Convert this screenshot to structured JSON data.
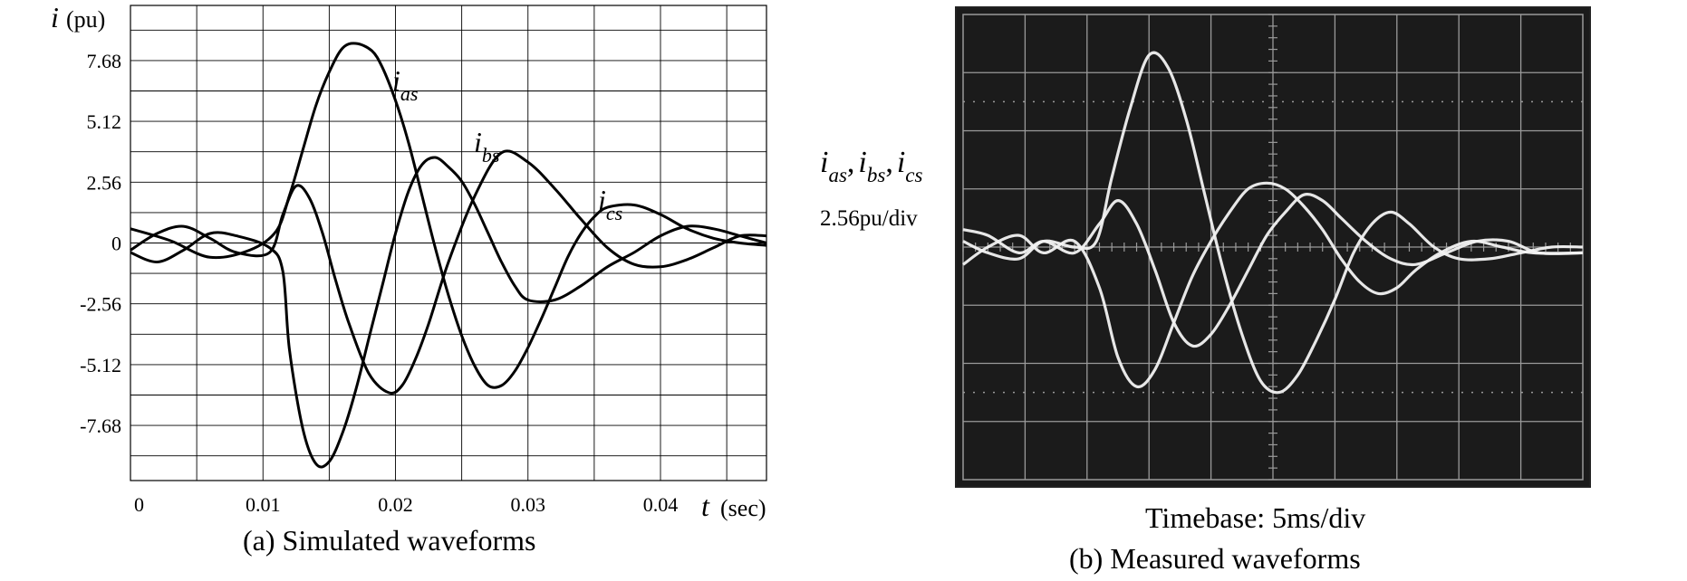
{
  "chart_data": [
    {
      "type": "line",
      "caption": "(a)  Simulated waveforms",
      "ylabel_symbol": "i",
      "ylabel_unit": "(pu)",
      "xlabel_symbol": "t",
      "xlabel_unit": "(sec)",
      "x_ticks": [
        "0",
        "0.01",
        "0.02",
        "0.03",
        "0.04"
      ],
      "y_ticks": [
        "7.68",
        "5.12",
        "2.56",
        "0",
        "-2.56",
        "-5.12",
        "-7.68"
      ],
      "xlim": [
        0,
        0.048
      ],
      "ylim": [
        -10.0,
        10.0
      ],
      "grid": true,
      "series": [
        {
          "name": "as",
          "x": [
            0,
            0.003,
            0.006,
            0.009,
            0.011,
            0.012,
            0.013,
            0.014,
            0.015,
            0.016,
            0.017,
            0.0182,
            0.019,
            0.02,
            0.021,
            0.022,
            0.023,
            0.024,
            0.025,
            0.026,
            0.027,
            0.028,
            0.029,
            0.03,
            0.031,
            0.032,
            0.033,
            0.034,
            0.035,
            0.036,
            0.038,
            0.04,
            0.042,
            0.044,
            0.046,
            0.048
          ],
          "y": [
            0.6,
            0.1,
            -0.6,
            -0.3,
            0.5,
            2.0,
            3.9,
            5.8,
            7.2,
            8.2,
            8.4,
            8.1,
            7.4,
            6.0,
            4.2,
            2.0,
            -0.2,
            -2.2,
            -3.9,
            -5.2,
            -6.0,
            -6.0,
            -5.4,
            -4.4,
            -3.2,
            -1.9,
            -0.6,
            0.4,
            1.1,
            1.5,
            1.6,
            1.2,
            0.6,
            0.2,
            0.0,
            -0.1
          ]
        },
        {
          "name": "bs",
          "x": [
            0,
            0.002,
            0.004,
            0.006,
            0.008,
            0.0105,
            0.0115,
            0.012,
            0.013,
            0.014,
            0.015,
            0.016,
            0.017,
            0.018,
            0.019,
            0.02,
            0.021,
            0.022,
            0.023,
            0.024,
            0.025,
            0.026,
            0.027,
            0.028,
            0.029,
            0.03,
            0.032,
            0.034,
            0.036,
            0.038,
            0.04,
            0.042,
            0.044,
            0.046,
            0.048
          ],
          "y": [
            -0.4,
            -0.8,
            -0.3,
            0.4,
            0.3,
            -0.2,
            -1.2,
            -4.5,
            -7.8,
            -9.3,
            -9.2,
            -8.0,
            -6.2,
            -4.0,
            -1.8,
            0.4,
            2.2,
            3.3,
            3.6,
            3.2,
            2.6,
            1.6,
            0.4,
            -0.8,
            -1.8,
            -2.4,
            -2.4,
            -1.8,
            -1.0,
            -0.4,
            0.3,
            0.7,
            0.6,
            0.3,
            0.0
          ]
        },
        {
          "name": "cs",
          "x": [
            0,
            0.002,
            0.004,
            0.006,
            0.008,
            0.0105,
            0.0115,
            0.0125,
            0.0135,
            0.0145,
            0.0155,
            0.0165,
            0.018,
            0.0195,
            0.0205,
            0.0215,
            0.0225,
            0.024,
            0.026,
            0.028,
            0.03,
            0.032,
            0.034,
            0.036,
            0.038,
            0.04,
            0.042,
            0.044,
            0.046,
            0.048
          ],
          "y": [
            -0.3,
            0.4,
            0.7,
            0.2,
            -0.4,
            -0.4,
            1.2,
            2.4,
            1.9,
            0.4,
            -1.6,
            -3.4,
            -5.5,
            -6.3,
            -6.0,
            -4.9,
            -3.4,
            -0.8,
            2.0,
            3.8,
            3.4,
            2.3,
            1.0,
            -0.2,
            -0.9,
            -1.0,
            -0.7,
            -0.2,
            0.3,
            0.3
          ]
        }
      ]
    },
    {
      "type": "line",
      "caption": "(b)  Measured waveforms",
      "ylabel_symbol": "i",
      "ylabel_subscripts": [
        "as",
        "bs",
        "cs"
      ],
      "ylabel_scale": "2.56pu/div",
      "timebase": "Timebase: 5ms/div",
      "background": "#1b1b1b",
      "grid_color": "#9a9a9a",
      "trace_color": "#f2f2f2",
      "grid_divisions": [
        10,
        8
      ],
      "xlim": [
        0,
        10
      ],
      "ylim": [
        -4,
        4
      ],
      "series": [
        {
          "name": "as",
          "x": [
            0,
            0.4,
            0.9,
            1.3,
            1.8,
            2.15,
            2.4,
            2.7,
            3.0,
            3.3,
            3.6,
            3.9,
            4.2,
            4.5,
            4.8,
            5.1,
            5.4,
            5.7,
            6.0,
            6.3,
            6.6,
            6.9,
            7.2,
            7.6,
            8.0,
            8.5,
            9.0,
            9.5,
            10
          ],
          "y": [
            0.1,
            -0.1,
            -0.2,
            0.1,
            0.0,
            0.1,
            1.2,
            2.4,
            3.3,
            3.1,
            2.2,
            0.9,
            -0.4,
            -1.5,
            -2.3,
            -2.5,
            -2.2,
            -1.6,
            -0.9,
            -0.1,
            0.4,
            0.6,
            0.4,
            0.0,
            -0.2,
            -0.2,
            -0.1,
            0.0,
            0.0
          ]
        },
        {
          "name": "bs",
          "x": [
            0,
            0.4,
            0.9,
            1.3,
            1.8,
            2.2,
            2.5,
            2.8,
            3.1,
            3.4,
            3.7,
            4.0,
            4.3,
            4.6,
            4.9,
            5.2,
            5.5,
            5.8,
            6.1,
            6.4,
            6.7,
            7.0,
            7.3,
            7.7,
            8.2,
            8.7,
            9.2,
            10
          ],
          "y": [
            -0.3,
            0.0,
            0.2,
            -0.1,
            0.1,
            -0.7,
            -1.9,
            -2.4,
            -2.1,
            -1.3,
            -0.5,
            0.1,
            0.6,
            1.0,
            1.1,
            1.0,
            0.7,
            0.3,
            -0.2,
            -0.6,
            -0.8,
            -0.7,
            -0.4,
            -0.1,
            0.1,
            0.0,
            -0.1,
            -0.1
          ]
        },
        {
          "name": "cs",
          "x": [
            0,
            0.4,
            0.9,
            1.3,
            1.8,
            2.2,
            2.5,
            2.8,
            3.1,
            3.4,
            3.7,
            4.0,
            4.3,
            4.6,
            4.9,
            5.2,
            5.5,
            5.8,
            6.1,
            6.5,
            6.9,
            7.3,
            7.8,
            8.3,
            8.8,
            9.3,
            10
          ],
          "y": [
            0.3,
            0.2,
            -0.1,
            0.1,
            -0.1,
            0.4,
            0.8,
            0.4,
            -0.4,
            -1.3,
            -1.7,
            -1.5,
            -1.0,
            -0.4,
            0.2,
            0.6,
            0.9,
            0.8,
            0.5,
            0.1,
            -0.2,
            -0.3,
            -0.1,
            0.1,
            0.1,
            -0.1,
            -0.1
          ]
        }
      ]
    }
  ]
}
